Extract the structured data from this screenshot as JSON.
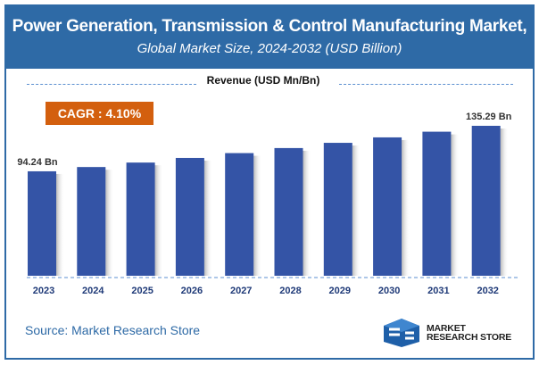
{
  "header": {
    "title": "Power Generation, Transmission & Control Manufacturing Market,",
    "subtitle": "Global Market Size, 2024-2032 (USD Billion)"
  },
  "cagr_label": "CAGR : 4.10%",
  "source": "Source: Market Research Store",
  "logo": {
    "line1": "MARKET",
    "line2": "RESEARCH STORE"
  },
  "colors": {
    "header": "#2e6aa6",
    "bar": "#3454a6",
    "cagr": "#d35f0e",
    "year_label": "#1f3a78"
  },
  "chart_data": {
    "type": "bar",
    "title": "Revenue (USD Mn/Bn)",
    "categories": [
      "2023",
      "2024",
      "2025",
      "2026",
      "2027",
      "2028",
      "2029",
      "2030",
      "2031",
      "2032"
    ],
    "values": [
      94.24,
      98.1,
      102.12,
      106.31,
      110.67,
      115.21,
      119.93,
      124.85,
      129.97,
      135.29
    ],
    "data_labels": {
      "0": "94.24 Bn",
      "9": "135.29 Bn"
    },
    "ylim": [
      0,
      140
    ],
    "grid": false
  }
}
